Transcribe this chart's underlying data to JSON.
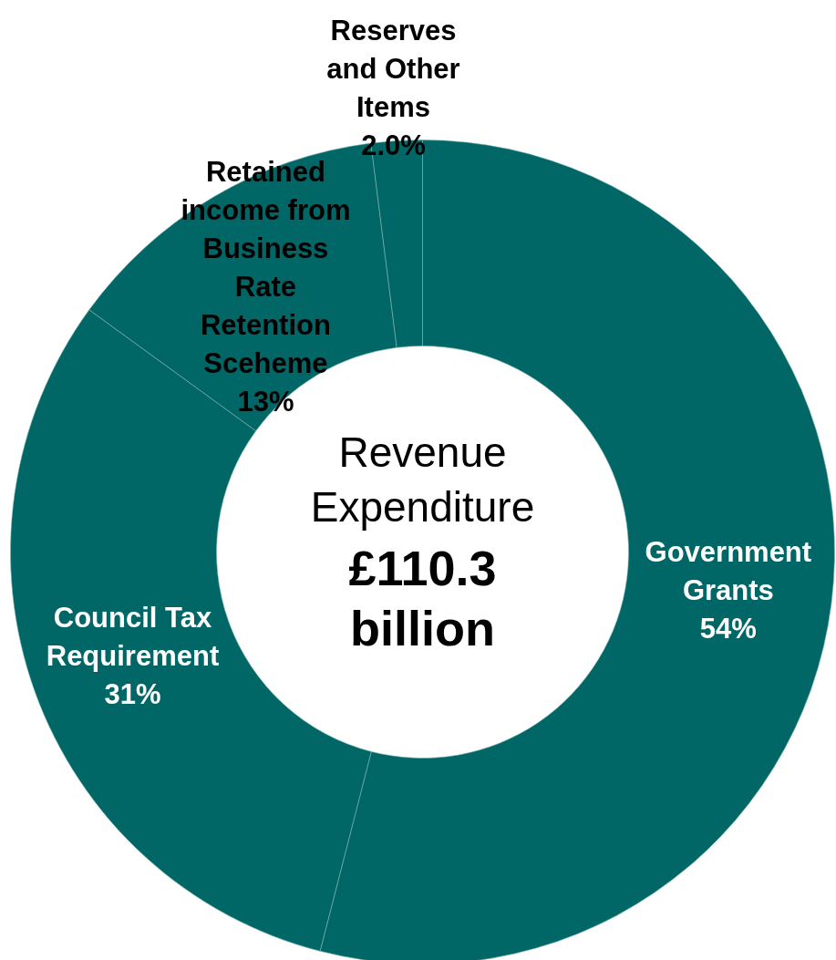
{
  "chart_data": {
    "type": "donut",
    "categories": [
      "Government Grants",
      "Council Tax Requirement",
      "Retained income from Business Rate Retention Sceheme",
      "Reserves and Other Items"
    ],
    "values": [
      54,
      31,
      13,
      2.0
    ],
    "value_labels": [
      "54%",
      "31%",
      "13%",
      "2.0%"
    ],
    "colors": [
      "#006766",
      "#006766",
      "#006766",
      "#006766"
    ],
    "annotations": [
      "Revenue Expenditure",
      "£110.3 billion"
    ],
    "legend": false
  }
}
